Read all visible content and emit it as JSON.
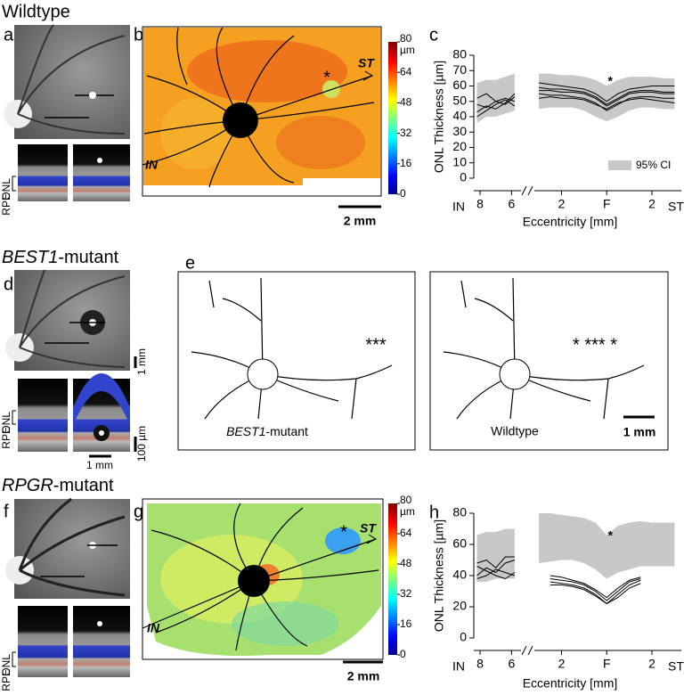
{
  "row_titles": {
    "wildtype": "Wildtype",
    "best1_gene": "BEST1",
    "best1_suffix": "-mutant",
    "rpgr_gene": "RPGR",
    "rpgr_suffix": "-mutant"
  },
  "panel_letters": [
    "a",
    "b",
    "c",
    "d",
    "e",
    "f",
    "g",
    "h"
  ],
  "oct_layers": {
    "onl": "ONL",
    "rpe": "RPE"
  },
  "scale_bars": {
    "fundus": "1 mm",
    "oct_depth": "100 µm",
    "oct_width": "1 mm",
    "map": "2 mm",
    "overlay": "1 mm"
  },
  "maps": {
    "colorbar_unit": "µm",
    "colorbar_ticks": [
      80,
      64,
      48,
      32,
      16,
      0
    ],
    "fovea": "*",
    "temporal": "ST",
    "nasal": "IN"
  },
  "overlay": {
    "left_gene": "BEST1",
    "left_suffix": "-mutant",
    "left_fovea": "***",
    "right_label": "Wildtype",
    "right_fovea": "* *** *"
  },
  "chart_data": [
    {
      "type": "line",
      "y_label": "ONL Thickness [µm]",
      "x_label": "Eccentricity [mm]",
      "x_end_labels": [
        "IN",
        "ST"
      ],
      "annotation": "*",
      "legend": "95% CI",
      "ci_color": "#c8c8c8",
      "line_color": "#000000",
      "ylim": [
        0,
        80
      ],
      "yticks": [
        0,
        10,
        20,
        30,
        40,
        50,
        60,
        70,
        80
      ],
      "xticks": [
        {
          "value": -8,
          "label": "8"
        },
        {
          "value": -6,
          "label": "6"
        },
        {
          "value": -2,
          "label": "2"
        },
        {
          "value": 0,
          "label": "F"
        },
        {
          "value": 2,
          "label": "2"
        }
      ],
      "segments": [
        {
          "xlim": [
            -8.4,
            -5.4
          ],
          "x": [
            -8.2,
            -7.6,
            -7.0,
            -6.4,
            -5.8
          ],
          "ci_lower": [
            36,
            40,
            40,
            42,
            44
          ],
          "ci_upper": [
            62,
            64,
            64,
            66,
            68
          ],
          "series": [
            {
              "values": [
                43,
                47,
                45,
                49,
                55
              ]
            },
            {
              "values": [
                48,
                46,
                50,
                52,
                50
              ]
            },
            {
              "values": [
                52,
                55,
                50,
                48,
                53
              ]
            },
            {
              "values": [
                40,
                44,
                48,
                51,
                47
              ]
            }
          ]
        },
        {
          "xlim": [
            -3.2,
            3.3
          ],
          "x": [
            -3,
            -2.5,
            -2,
            -1.5,
            -1,
            -0.5,
            0,
            0.5,
            1,
            1.5,
            2,
            2.5,
            3
          ],
          "ci_lower": [
            45,
            46,
            46,
            46,
            44,
            40,
            37,
            40,
            44,
            46,
            46,
            45,
            45
          ],
          "ci_upper": [
            68,
            68,
            67,
            67,
            66,
            64,
            60,
            64,
            66,
            66,
            66,
            65,
            65
          ],
          "series": [
            {
              "values": [
                62,
                61,
                60,
                59,
                58,
                55,
                50,
                55,
                58,
                59,
                60,
                60,
                60
              ]
            },
            {
              "values": [
                57,
                57,
                56,
                56,
                55,
                52,
                47,
                51,
                55,
                56,
                56,
                55,
                55
              ]
            },
            {
              "values": [
                55,
                54,
                54,
                53,
                52,
                49,
                44,
                48,
                52,
                53,
                53,
                52,
                52
              ]
            },
            {
              "values": [
                52,
                53,
                52,
                52,
                51,
                48,
                45,
                49,
                51,
                52,
                51,
                50,
                49
              ]
            },
            {
              "values": [
                59,
                58,
                58,
                57,
                56,
                53,
                48,
                52,
                56,
                57,
                57,
                56,
                56
              ]
            }
          ]
        }
      ]
    },
    {
      "type": "line",
      "y_label": "ONL Thickness [µm]",
      "x_label": "Eccentricity [mm]",
      "x_end_labels": [
        "IN",
        "ST"
      ],
      "annotation": "*",
      "ci_color": "#c8c8c8",
      "line_color": "#000000",
      "ylim": [
        0,
        80
      ],
      "yticks": [
        0,
        20,
        40,
        60,
        80
      ],
      "xticks": [
        {
          "value": -8,
          "label": "8"
        },
        {
          "value": -6,
          "label": "6"
        },
        {
          "value": -2,
          "label": "2"
        },
        {
          "value": 0,
          "label": "F"
        },
        {
          "value": 2,
          "label": "2"
        }
      ],
      "segments": [
        {
          "xlim": [
            -8.4,
            -5.4
          ],
          "x": [
            -8.2,
            -7.6,
            -7.0,
            -6.4,
            -5.8
          ],
          "ci_lower": [
            36,
            36,
            38,
            38,
            38
          ],
          "ci_upper": [
            66,
            68,
            68,
            70,
            70
          ],
          "series": [
            {
              "values": [
                40,
                45,
                42,
                48,
                50
              ]
            },
            {
              "values": [
                46,
                43,
                40,
                38,
                42
              ]
            },
            {
              "values": [
                48,
                50,
                45,
                52,
                52
              ]
            },
            {
              "values": [
                38,
                40,
                44,
                42,
                40
              ]
            }
          ]
        },
        {
          "xlim": [
            -3.2,
            3.3
          ],
          "x": [
            -3,
            -2.5,
            -2,
            -1.5,
            -1,
            -0.5,
            0,
            0.5,
            1,
            1.5,
            2,
            2.5,
            3
          ],
          "ci_lower": [
            48,
            49,
            50,
            50,
            48,
            44,
            38,
            42,
            44,
            46,
            46,
            46,
            46
          ],
          "ci_upper": [
            80,
            80,
            79,
            78,
            77,
            74,
            66,
            72,
            74,
            75,
            74,
            74,
            74
          ],
          "series": [
            {
              "values": [
                null,
                38,
                37,
                36,
                34,
                30,
                24,
                30,
                36,
                38,
                null,
                null,
                null
              ]
            },
            {
              "values": [
                null,
                36,
                35,
                34,
                32,
                28,
                22,
                28,
                34,
                37,
                null,
                null,
                null
              ]
            },
            {
              "values": [
                null,
                40,
                39,
                37,
                35,
                31,
                26,
                32,
                37,
                39,
                null,
                null,
                null
              ]
            },
            {
              "values": [
                null,
                34,
                34,
                33,
                31,
                27,
                22,
                26,
                32,
                35,
                null,
                null,
                null
              ]
            }
          ]
        }
      ]
    }
  ]
}
